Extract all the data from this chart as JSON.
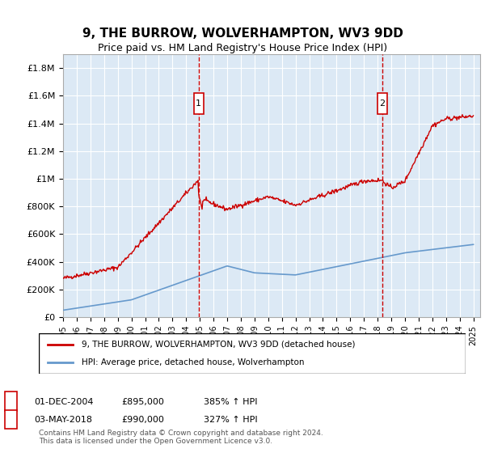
{
  "title": "9, THE BURROW, WOLVERHAMPTON, WV3 9DD",
  "subtitle": "Price paid vs. HM Land Registry's House Price Index (HPI)",
  "ylabel_ticks": [
    "£0",
    "£200K",
    "£400K",
    "£600K",
    "£800K",
    "£1M",
    "£1.2M",
    "£1.4M",
    "£1.6M",
    "£1.8M"
  ],
  "ytick_values": [
    0,
    200000,
    400000,
    600000,
    800000,
    1000000,
    1200000,
    1400000,
    1600000,
    1800000
  ],
  "ylim": [
    0,
    1900000
  ],
  "xlim_start": 1995.0,
  "xlim_end": 2025.5,
  "background_color": "#dce9f5",
  "marker1_x": 2004.917,
  "marker1_label": "1",
  "marker1_y": 895000,
  "marker2_x": 2018.33,
  "marker2_label": "2",
  "marker2_y": 990000,
  "legend_line1": "9, THE BURROW, WOLVERHAMPTON, WV3 9DD (detached house)",
  "legend_line2": "HPI: Average price, detached house, Wolverhampton",
  "table_row1": [
    "1",
    "01-DEC-2004",
    "£895,000",
    "385% ↑ HPI"
  ],
  "table_row2": [
    "2",
    "03-MAY-2018",
    "£990,000",
    "327% ↑ HPI"
  ],
  "footnote": "Contains HM Land Registry data © Crown copyright and database right 2024.\nThis data is licensed under the Open Government Licence v3.0.",
  "red_color": "#cc0000",
  "blue_color": "#6699cc",
  "marker_box_color": "#cc0000"
}
